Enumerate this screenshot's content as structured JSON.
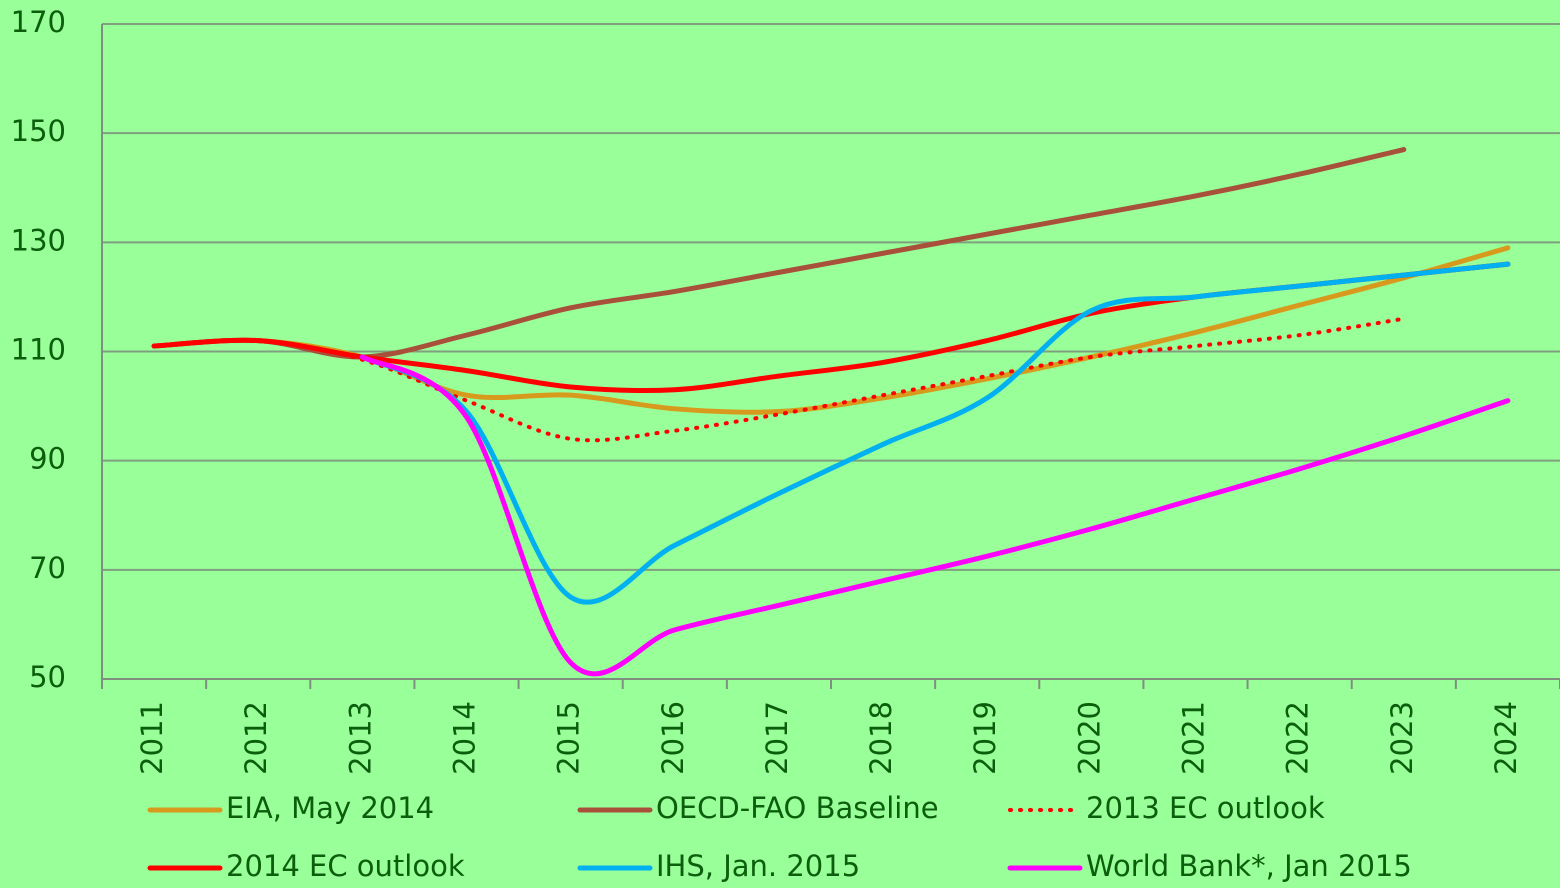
{
  "chart_data": {
    "type": "line",
    "categories": [
      "2011",
      "2012",
      "2013",
      "2014",
      "2015",
      "2016",
      "2017",
      "2018",
      "2019",
      "2020",
      "2021",
      "2022",
      "2023",
      "2024"
    ],
    "series": [
      {
        "name": "EIA, May 2014",
        "color": "#d89a1c",
        "values": [
          111,
          112,
          109,
          102,
          102,
          99.5,
          99,
          101.5,
          105,
          109,
          113.5,
          118.5,
          123.5,
          129
        ]
      },
      {
        "name": "OECD-FAO Baseline",
        "color": "#a8503a",
        "values": [
          111,
          112,
          109,
          113,
          118,
          121,
          124.5,
          128,
          131.5,
          135,
          138.5,
          142.5,
          147,
          null
        ]
      },
      {
        "name": "2013 EC outlook",
        "color": "#ff0000",
        "style": "dotted",
        "values": [
          111,
          112,
          108.5,
          101,
          94,
          95.5,
          98.5,
          102,
          105.5,
          109,
          111,
          113,
          116,
          null
        ]
      },
      {
        "name": "2014 EC outlook",
        "color": "#ff0000",
        "values": [
          111,
          112,
          109,
          106.5,
          103.5,
          103,
          105.5,
          108,
          112,
          117,
          120,
          122,
          124,
          126
        ]
      },
      {
        "name": "IHS, Jan. 2015",
        "color": "#00b0f0",
        "values": [
          null,
          null,
          109,
          99,
          65,
          74.5,
          84,
          93,
          101.5,
          117.5,
          120,
          122,
          124,
          126
        ]
      },
      {
        "name": "World Bank*, Jan 2015",
        "color": "#ff00ff",
        "values": [
          null,
          null,
          109,
          98,
          53,
          59,
          63.5,
          68,
          72.5,
          77.5,
          83,
          88.5,
          94.5,
          101
        ]
      }
    ],
    "ylim": [
      50,
      170
    ],
    "yticks": [
      50,
      70,
      90,
      110,
      130,
      150,
      170
    ],
    "grid": true,
    "legend": "bottom"
  }
}
